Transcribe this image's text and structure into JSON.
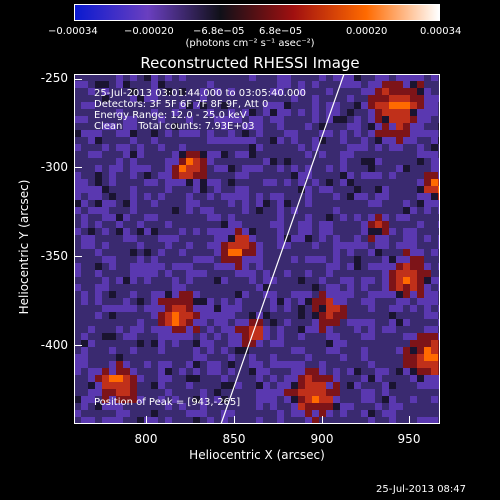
{
  "colorbar": {
    "tick_labels": [
      "−0.00034",
      "−0.00020",
      "−6.8e−05",
      "6.8e−05",
      "0.00020",
      "0.00034"
    ],
    "unit_label": "(photons cm⁻² s⁻¹ asec⁻²)",
    "colors": [
      "#0a1ad0",
      "#6a3fc0",
      "#101018",
      "#a01010",
      "#ff6a00",
      "#ffffff"
    ]
  },
  "title": "Reconstructed RHESSI Image",
  "info": {
    "time_range": "25-Jul-2013 03:01:44.000 to 03:05:40.000",
    "detectors": "Detectors: 3F 5F 6F 7F 8F 9F, Att 0",
    "energy": "Energy Range: 12.0 - 25.0 keV",
    "clean": "Clean     Total counts: 7.93E+03",
    "peak": "Position of Peak = [943,-265]"
  },
  "axes": {
    "xlabel": "Heliocentric X (arcsec)",
    "ylabel": "Heliocentric Y (arcsec)",
    "x_ticks": [
      "800",
      "850",
      "900",
      "950"
    ],
    "y_ticks": [
      "-250",
      "-300",
      "-350",
      "-400"
    ],
    "xlim": [
      763,
      957
    ],
    "ylim": [
      -446,
      -250
    ]
  },
  "timestamp": "25-Jul-2013 08:47"
}
